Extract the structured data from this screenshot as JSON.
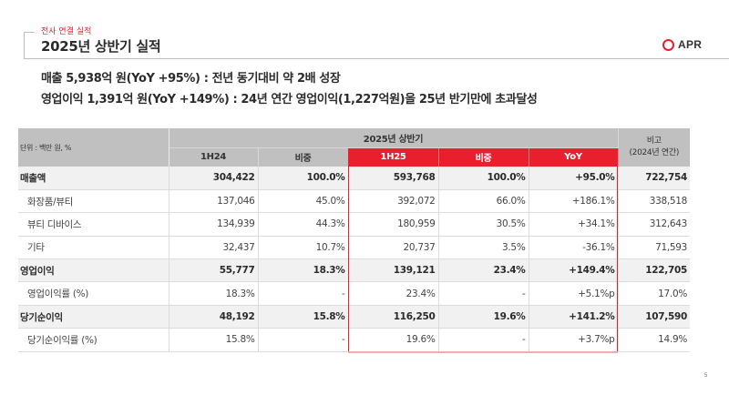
{
  "header": {
    "section": "전사 연결 실적",
    "title": "2025년 상반기 실적",
    "logo_text": "APR",
    "accent": "#e8202e"
  },
  "summary": [
    "매출 5,938억 원(YoY +95%) : 전년 동기대비 약 2배 성장",
    "영업이익 1,391억 원(YoY +149%) : 24년 연간 영업이익(1,227억원)을 25년 반기만에 초과달성"
  ],
  "table": {
    "unit": "단위 : 백만 원, %",
    "group_header": "2025년 상반기",
    "note_header_line1": "비고",
    "note_header_line2": "(2024년 연간)",
    "columns": [
      "1H24",
      "비중",
      "1H25",
      "비중",
      "YoY"
    ],
    "rows": [
      {
        "label": "매출액",
        "type": "main",
        "values": [
          "304,422",
          "100.0%",
          "593,768",
          "100.0%",
          "+95.0%",
          "722,754"
        ]
      },
      {
        "label": "화장품/뷰티",
        "type": "sub",
        "values": [
          "137,046",
          "45.0%",
          "392,072",
          "66.0%",
          "+186.1%",
          "338,518"
        ]
      },
      {
        "label": "뷰티 디바이스",
        "type": "sub",
        "values": [
          "134,939",
          "44.3%",
          "180,959",
          "30.5%",
          "+34.1%",
          "312,643"
        ]
      },
      {
        "label": "기타",
        "type": "sub",
        "values": [
          "32,437",
          "10.7%",
          "20,737",
          "3.5%",
          "-36.1%",
          "71,593"
        ]
      },
      {
        "label": "영업이익",
        "type": "main",
        "values": [
          "55,777",
          "18.3%",
          "139,121",
          "23.4%",
          "+149.4%",
          "122,705"
        ]
      },
      {
        "label": "영업이익률 (%)",
        "type": "sub",
        "values": [
          "18.3%",
          "-",
          "23.4%",
          "-",
          "+5.1%p",
          "17.0%"
        ]
      },
      {
        "label": "당기순이익",
        "type": "main",
        "values": [
          "48,192",
          "15.8%",
          "116,250",
          "19.6%",
          "+141.2%",
          "107,590"
        ]
      },
      {
        "label": "당기순이익률 (%)",
        "type": "sub",
        "values": [
          "15.8%",
          "-",
          "19.6%",
          "-",
          "+3.7%p",
          "14.9%"
        ]
      }
    ]
  },
  "page_number": "5"
}
